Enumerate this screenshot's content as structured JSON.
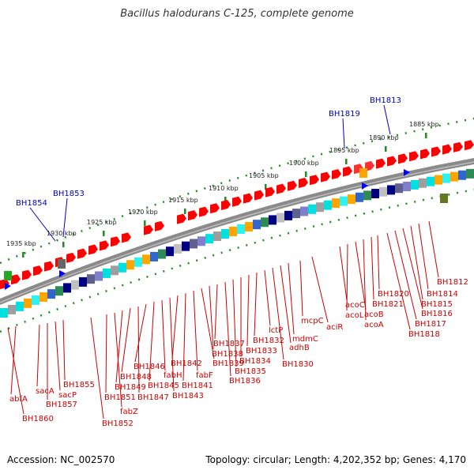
{
  "title": "Bacillus halodurans C-125, complete genome",
  "footer": {
    "accession": "Accession: NC_002570",
    "summary": "Topology: circular; Length: 4,202,352 bp; Genes: 4,170"
  },
  "colors": {
    "backbone": "#888888",
    "tick": "#228b22",
    "forward_gene": "#ff0000",
    "label_red": "#cc0000",
    "label_blue": "#0000bb"
  },
  "kbp_ticks": [
    "1885 kbp",
    "1890 kbp",
    "1895 kbp",
    "1900 kbp",
    "1905 kbp",
    "1910 kbp",
    "1915 kbp",
    "1920 kbp",
    "1925 kbp",
    "1930 kbp",
    "1935 kbp"
  ],
  "blue_labels": [
    "BH1813",
    "BH1819",
    "BH1853",
    "BH1854"
  ],
  "red_labels": [
    "BH1812",
    "BH1814",
    "BH1815",
    "BH1816",
    "BH1817",
    "BH1818",
    "BH1820",
    "BH1821",
    "acoA",
    "acoB",
    "acoL",
    "acoC",
    "aciR",
    "mcpC",
    "mdmC",
    "adhB",
    "BH1830",
    "lctP",
    "BH1832",
    "BH1833",
    "BH1834",
    "BH1835",
    "BH1836",
    "BH1837",
    "BH1838",
    "BH1839",
    "fabF",
    "BH1841",
    "BH1842",
    "BH1843",
    "fabH",
    "BH1845",
    "BH1846",
    "BH1847",
    "BH1848",
    "BH1849",
    "fabZ",
    "BH1851",
    "BH1852",
    "BH1855",
    "sacP",
    "BH1857",
    "sacA",
    "abfA",
    "BH1860"
  ]
}
